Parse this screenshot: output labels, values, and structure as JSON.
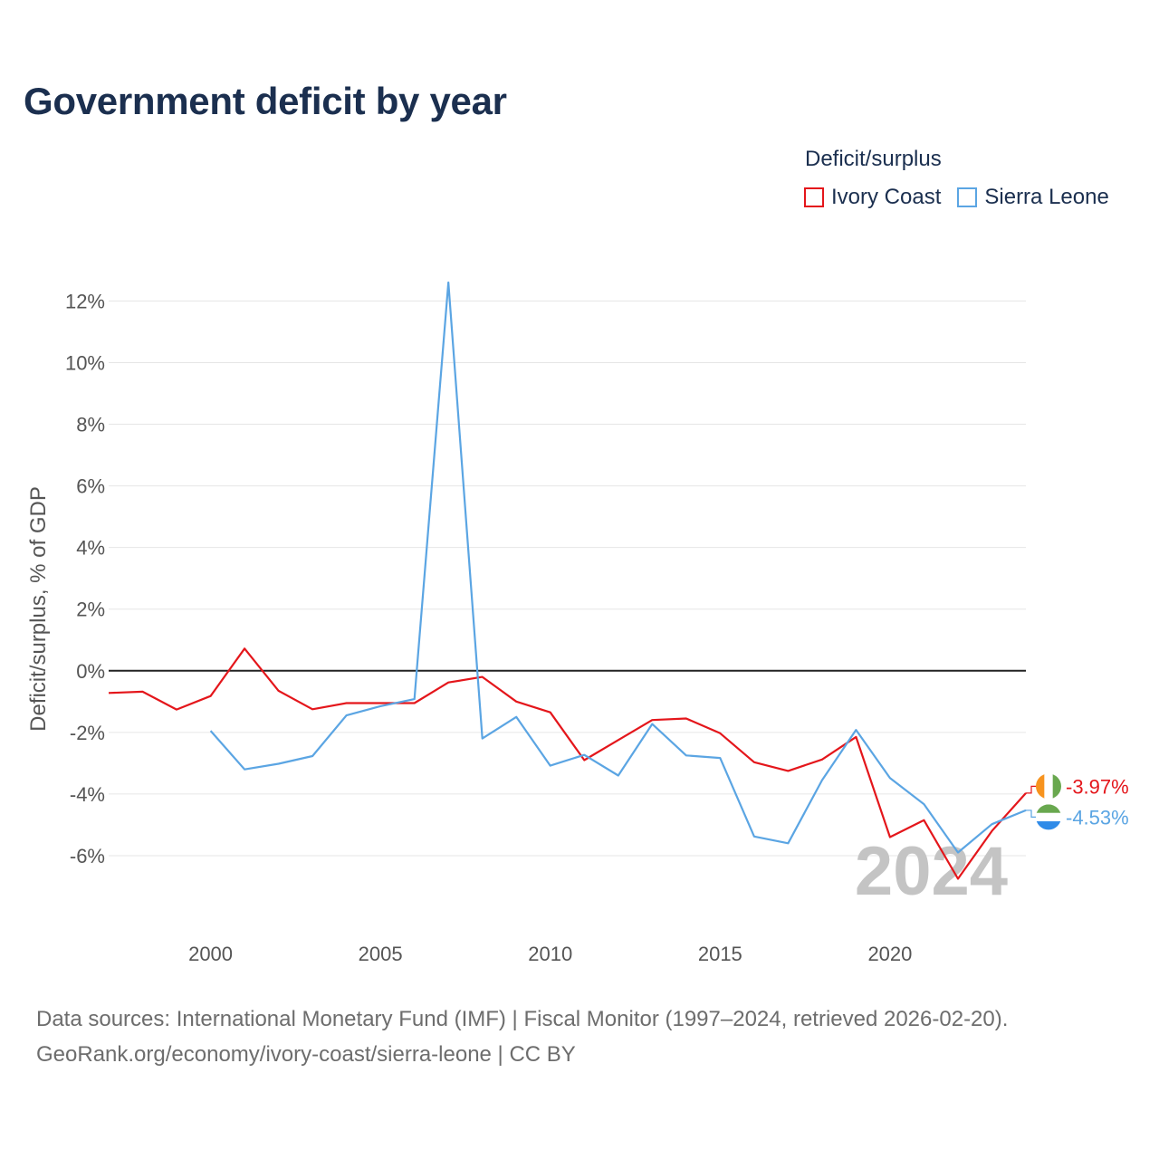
{
  "chart_data": {
    "type": "line",
    "title": "Government deficit by year",
    "legend_title": "Deficit/surplus",
    "ylabel": "Deficit/surplus, % of GDP",
    "xlabel": "",
    "x": [
      1997,
      1998,
      1999,
      2000,
      2001,
      2002,
      2003,
      2004,
      2005,
      2006,
      2007,
      2008,
      2009,
      2010,
      2011,
      2012,
      2013,
      2014,
      2015,
      2016,
      2017,
      2018,
      2019,
      2020,
      2021,
      2022,
      2023,
      2024
    ],
    "xlim": [
      1997,
      2024
    ],
    "ylim": [
      -8,
      12.6
    ],
    "xticks": [
      2000,
      2005,
      2010,
      2015,
      2020
    ],
    "xtick_labels": [
      "2000",
      "2005",
      "2010",
      "2015",
      "2020"
    ],
    "yticks": [
      -6,
      -4,
      -2,
      0,
      2,
      4,
      6,
      8,
      10,
      12
    ],
    "ytick_labels": [
      "-6%",
      "-4%",
      "-2%",
      "0%",
      "2%",
      "4%",
      "6%",
      "8%",
      "10%",
      "12%"
    ],
    "series": [
      {
        "name": "Ivory Coast",
        "color": "#e4161b",
        "values": [
          -0.72,
          -0.68,
          -1.26,
          -0.82,
          0.72,
          -0.65,
          -1.25,
          -1.05,
          -1.05,
          -1.05,
          -0.38,
          -0.2,
          -1.0,
          -1.35,
          -2.9,
          -2.25,
          -1.6,
          -1.55,
          -2.03,
          -2.97,
          -3.25,
          -2.88,
          -2.15,
          -5.4,
          -4.85,
          -6.75,
          -5.2,
          -3.97
        ],
        "end_label": "-3.97%",
        "flag_colors": [
          "#f7931e",
          "#ffffff",
          "#69a84f"
        ]
      },
      {
        "name": "Sierra Leone",
        "color": "#5ba5e3",
        "values": [
          null,
          null,
          null,
          -1.95,
          -3.2,
          -3.02,
          -2.77,
          -1.45,
          -1.15,
          -0.92,
          12.6,
          -2.2,
          -1.5,
          -3.08,
          -2.73,
          -3.4,
          -1.73,
          -2.75,
          -2.83,
          -5.38,
          -5.6,
          -3.55,
          -1.92,
          -3.48,
          -4.33,
          -5.9,
          -4.98,
          -4.53
        ],
        "end_label": "-4.53%",
        "flag_colors": [
          "#69a84f",
          "#ffffff",
          "#2f8be8"
        ]
      }
    ],
    "year_watermark": "2024",
    "grid": true,
    "legend_position": "top-right"
  },
  "footer": {
    "line1": "Data sources: International Monetary Fund (IMF) | Fiscal Monitor (1997–2024, retrieved 2026-02-20).",
    "line2": "GeoRank.org/economy/ivory-coast/sierra-leone | CC BY"
  }
}
